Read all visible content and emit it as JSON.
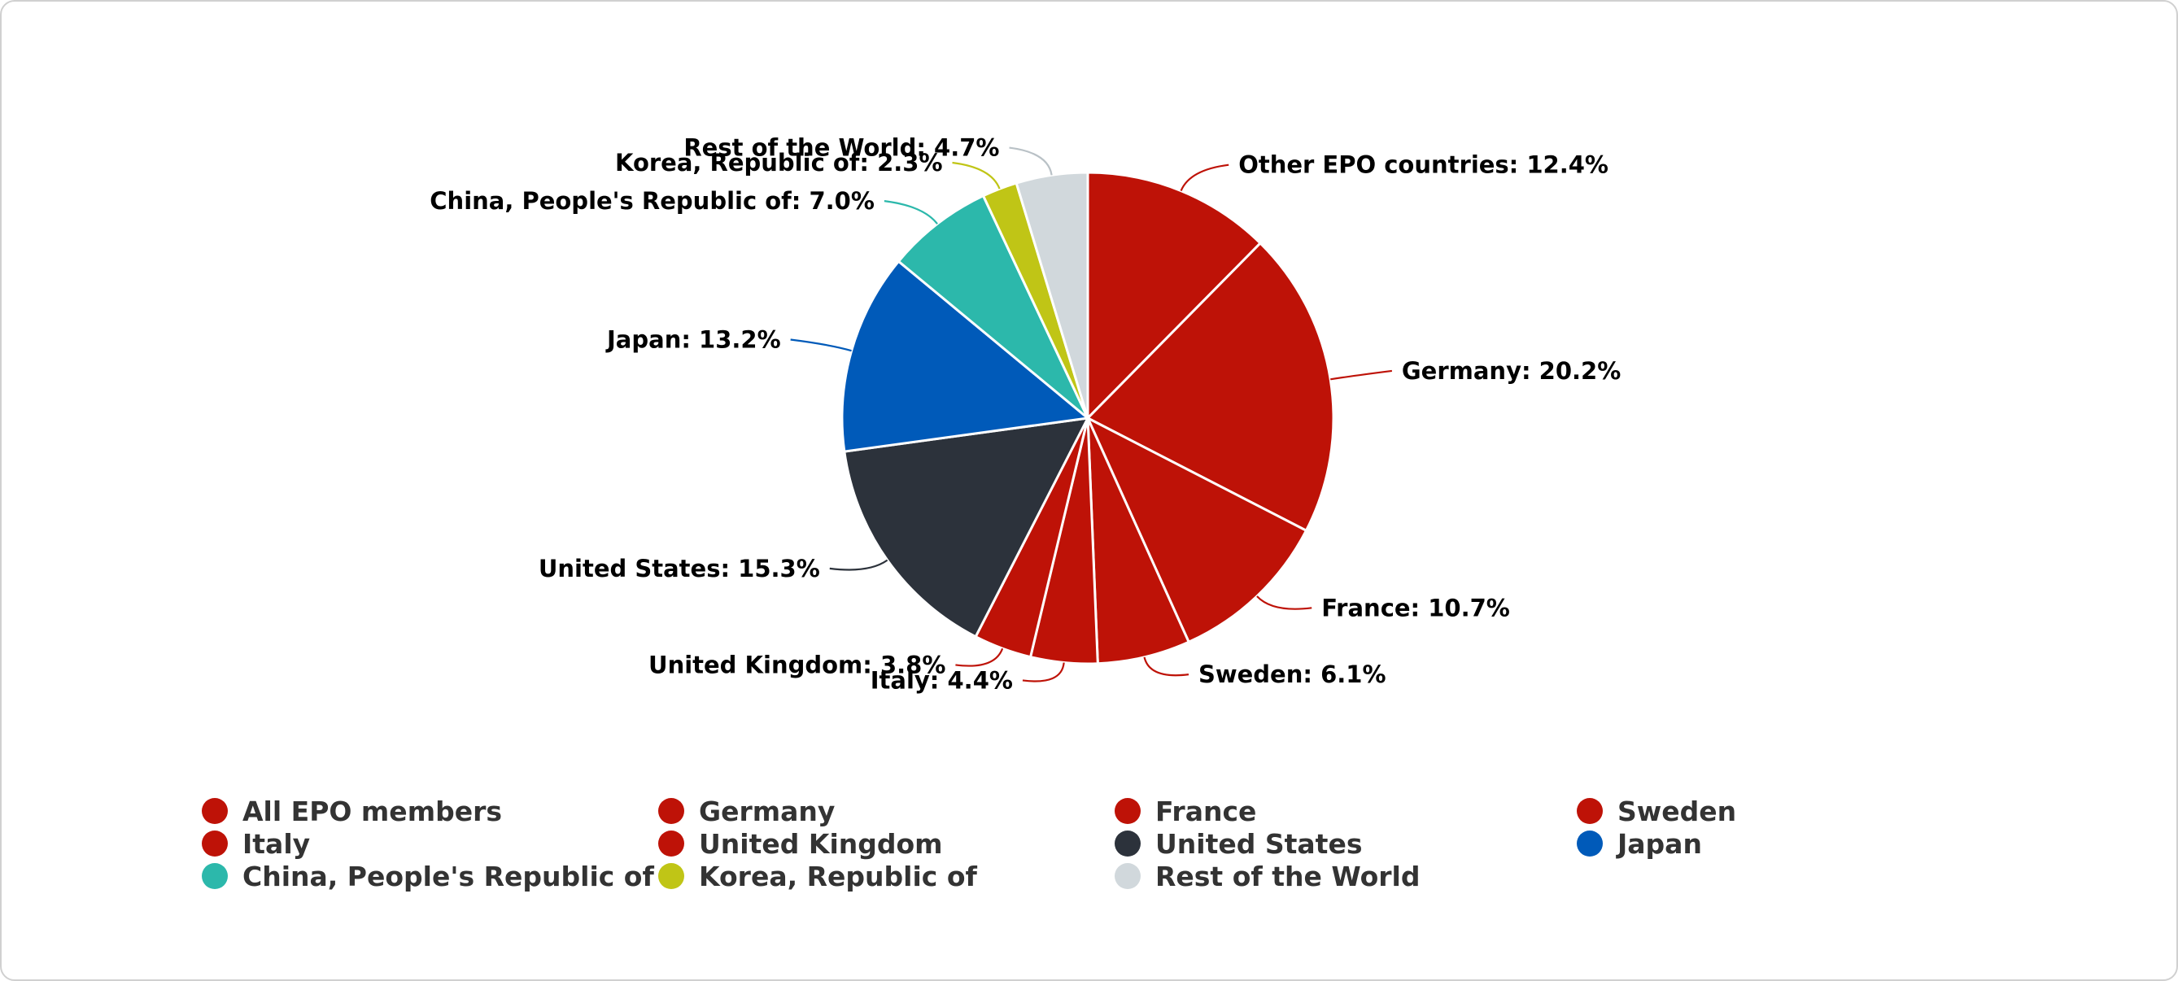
{
  "chart_data": {
    "type": "pie",
    "slices": [
      {
        "name": "All EPO members",
        "label": "Other EPO countries",
        "value": 12.4,
        "color": "#be1207"
      },
      {
        "name": "Germany",
        "label": "Germany",
        "value": 20.2,
        "color": "#be1207"
      },
      {
        "name": "France",
        "label": "France",
        "value": 10.7,
        "color": "#be1207"
      },
      {
        "name": "Sweden",
        "label": "Sweden",
        "value": 6.1,
        "color": "#be1207"
      },
      {
        "name": "Italy",
        "label": "Italy",
        "value": 4.4,
        "color": "#be1207"
      },
      {
        "name": "United Kingdom",
        "label": "United Kingdom",
        "value": 3.8,
        "color": "#be1207"
      },
      {
        "name": "United States",
        "label": "United States",
        "value": 15.3,
        "color": "#2c323b"
      },
      {
        "name": "Japan",
        "label": "Japan",
        "value": 13.2,
        "color": "#005ab9"
      },
      {
        "name": "China, People's Republic of",
        "label": "China, People's Republic of",
        "value": 7.0,
        "color": "#2cb8ab"
      },
      {
        "name": "Korea, Republic of",
        "label": "Korea, Republic of",
        "value": 2.3,
        "color": "#c0c516"
      },
      {
        "name": "Rest of the World",
        "label": "Rest of the World",
        "value": 4.7,
        "color": "#d1d8dc"
      }
    ],
    "value_suffix": "%",
    "legend_position": "bottom",
    "legend_order": [
      "All EPO members",
      "Germany",
      "France",
      "Sweden",
      "Italy",
      "United Kingdom",
      "United States",
      "Japan",
      "China, People's Republic of",
      "Korea, Republic of",
      "Rest of the World"
    ]
  }
}
